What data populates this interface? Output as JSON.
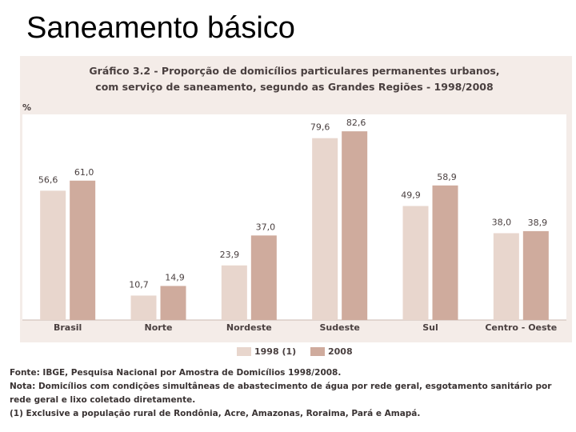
{
  "slide_title": "Saneamento básico",
  "chart_data": {
    "type": "bar",
    "title": [
      "Gráfico 3.2 -  Proporção de domicílios particulares permanentes urbanos,",
      "com serviço de saneamento, segundo as Grandes Regiões - 1998/2008"
    ],
    "y_label": "%",
    "categories": [
      "Brasil",
      "Norte",
      "Nordeste",
      "Sudeste",
      "Sul",
      "Centro - Oeste"
    ],
    "series": [
      {
        "name": "1998 (1)",
        "color": "#e8d6cd",
        "values": [
          56.6,
          10.7,
          23.9,
          79.6,
          49.9,
          38.0
        ],
        "value_labels": [
          "56,6",
          "10,7",
          "23,9",
          "79,6",
          "49,9",
          "38,0"
        ]
      },
      {
        "name": "2008",
        "color": "#cfab9d",
        "values": [
          61.0,
          14.9,
          37.0,
          82.6,
          58.9,
          38.9
        ],
        "value_labels": [
          "61,0",
          "14,9",
          "37,0",
          "82,6",
          "58,9",
          "38,9"
        ]
      }
    ],
    "ylim": [
      0,
      90
    ]
  },
  "notes": [
    "Fonte:  IBGE, Pesquisa Nacional por Amostra de Domicílios 1998/2008.",
    "Nota: Domicílios com condições simultâneas de abastecimento de água por rede geral, esgotamento sanitário por rede geral e lixo coletado diretamente.",
    "(1) Exclusive a população rural de Rondônia, Acre, Amazonas, Roraima, Pará e Amapá."
  ]
}
